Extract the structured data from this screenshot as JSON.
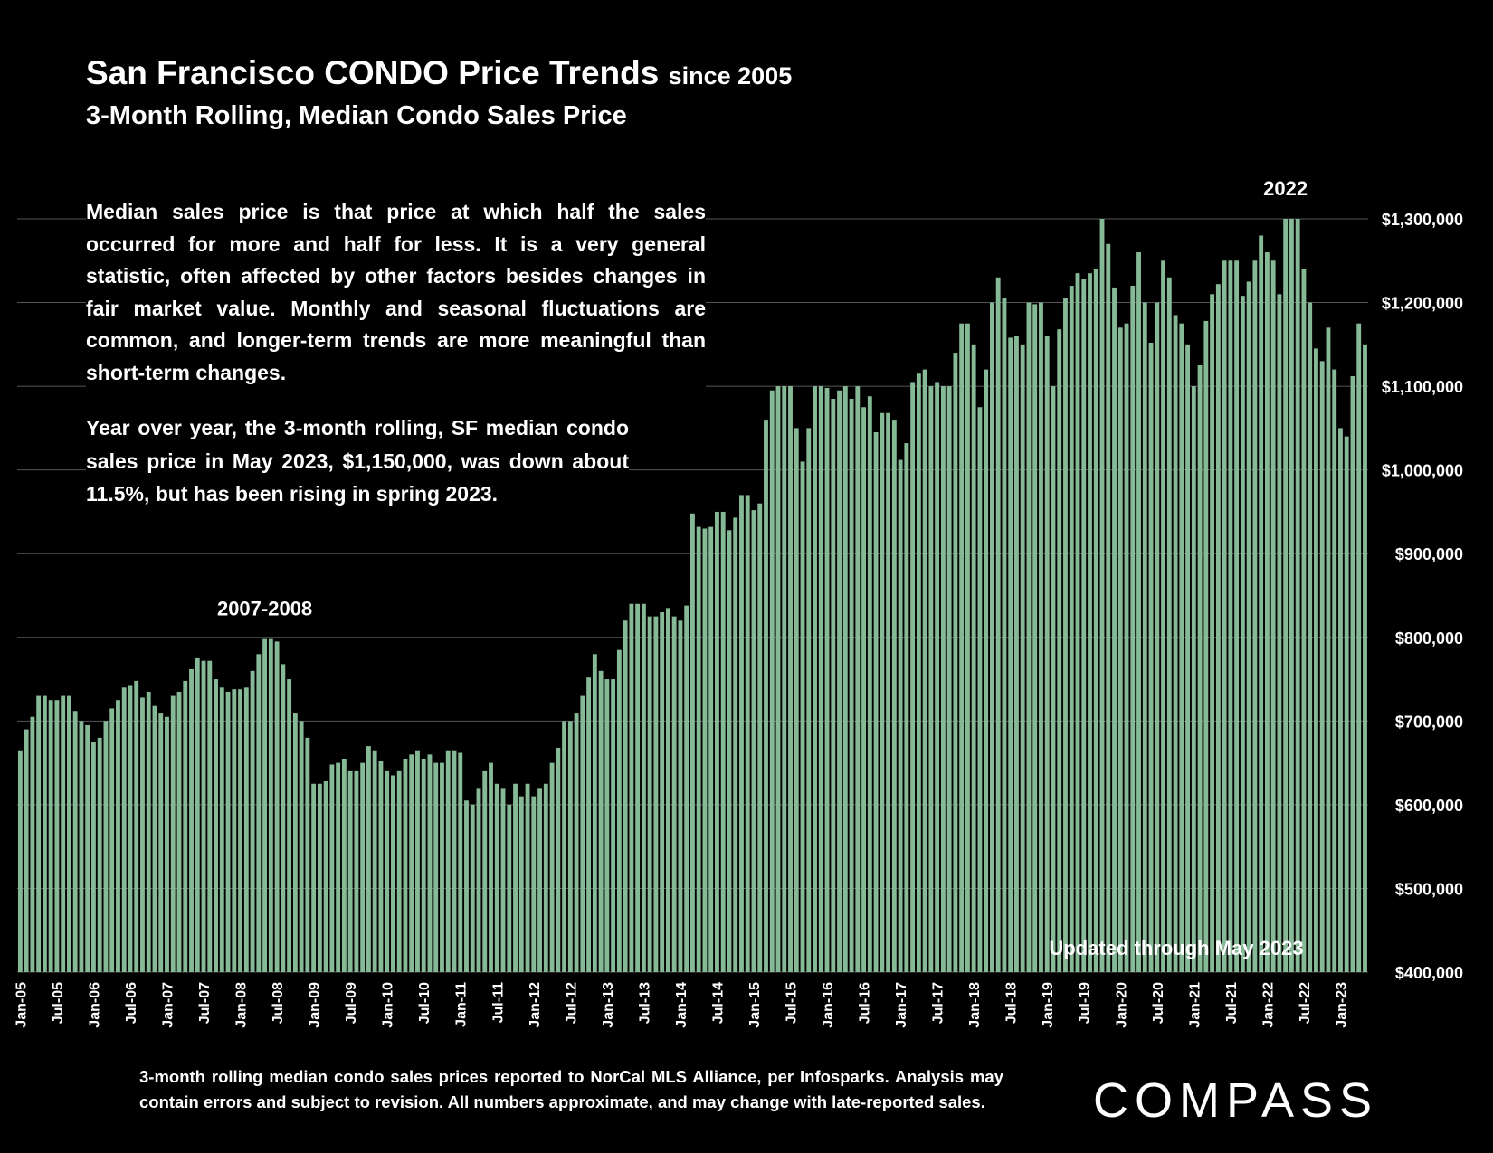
{
  "chart_data": {
    "type": "bar",
    "title": "San Francisco CONDO Price Trends",
    "title_suffix": "since 2005",
    "subtitle": "3-Month Rolling, Median Condo Sales Price",
    "notes": [
      "Median sales price is that price at which half the sales occurred for more and half for less. It is a very general statistic, often affected by other factors besides changes in fair market value. Monthly and seasonal fluctuations are common, and longer-term trends are more meaningful than short-term changes.",
      "Year over year, the 3-month rolling, SF median condo sales price in May 2023, $1,150,000, was down about 11.5%, but has been rising in spring 2023."
    ],
    "annotations": [
      {
        "text": "2007-2008",
        "index": 40
      },
      {
        "text": "2022",
        "index": 207
      }
    ],
    "updated": "Updated through May 2023",
    "footnote": "3-month rolling median condo sales prices reported to NorCal MLS Alliance, per Infosparks. Analysis may contain errors and subject to revision. All numbers approximate, and may change with late-reported sales.",
    "logo": "COMPASS",
    "color": "#86b996",
    "grid": true,
    "categories": [
      "Jan-05",
      null,
      null,
      null,
      null,
      null,
      "Jul-05",
      null,
      null,
      null,
      null,
      null,
      "Jan-06",
      null,
      null,
      null,
      null,
      null,
      "Jul-06",
      null,
      null,
      null,
      null,
      null,
      "Jan-07",
      null,
      null,
      null,
      null,
      null,
      "Jul-07",
      null,
      null,
      null,
      null,
      null,
      "Jan-08",
      null,
      null,
      null,
      null,
      null,
      "Jul-08",
      null,
      null,
      null,
      null,
      null,
      "Jan-09",
      null,
      null,
      null,
      null,
      null,
      "Jul-09",
      null,
      null,
      null,
      null,
      null,
      "Jan-10",
      null,
      null,
      null,
      null,
      null,
      "Jul-10",
      null,
      null,
      null,
      null,
      null,
      "Jan-11",
      null,
      null,
      null,
      null,
      null,
      "Jul-11",
      null,
      null,
      null,
      null,
      null,
      "Jan-12",
      null,
      null,
      null,
      null,
      null,
      "Jul-12",
      null,
      null,
      null,
      null,
      null,
      "Jan-13",
      null,
      null,
      null,
      null,
      null,
      "Jul-13",
      null,
      null,
      null,
      null,
      null,
      "Jan-14",
      null,
      null,
      null,
      null,
      null,
      "Jul-14",
      null,
      null,
      null,
      null,
      null,
      "Jan-15",
      null,
      null,
      null,
      null,
      null,
      "Jul-15",
      null,
      null,
      null,
      null,
      null,
      "Jan-16",
      null,
      null,
      null,
      null,
      null,
      "Jul-16",
      null,
      null,
      null,
      null,
      null,
      "Jan-17",
      null,
      null,
      null,
      null,
      null,
      "Jul-17",
      null,
      null,
      null,
      null,
      null,
      "Jan-18",
      null,
      null,
      null,
      null,
      null,
      "Jul-18",
      null,
      null,
      null,
      null,
      null,
      "Jan-19",
      null,
      null,
      null,
      null,
      null,
      "Jul-19",
      null,
      null,
      null,
      null,
      null,
      "Jan-20",
      null,
      null,
      null,
      null,
      null,
      "Jul-20",
      null,
      null,
      null,
      null,
      null,
      "Jan-21",
      null,
      null,
      null,
      null,
      null,
      "Jul-21",
      null,
      null,
      null,
      null,
      null,
      "Jan-22",
      null,
      null,
      null,
      null,
      null,
      "Jul-22",
      null,
      null,
      null,
      null,
      null,
      "Jan-23",
      null,
      null,
      null,
      null
    ],
    "values": [
      665000,
      690000,
      705000,
      730000,
      730000,
      725000,
      725000,
      730000,
      730000,
      712000,
      700000,
      695000,
      675000,
      680000,
      700000,
      715000,
      725000,
      740000,
      742000,
      748000,
      728000,
      735000,
      718000,
      710000,
      705000,
      730000,
      735000,
      748000,
      762000,
      775000,
      772000,
      772000,
      750000,
      740000,
      735000,
      738000,
      738000,
      740000,
      760000,
      780000,
      798000,
      798000,
      795000,
      768000,
      750000,
      710000,
      700000,
      680000,
      625000,
      625000,
      628000,
      648000,
      650000,
      655000,
      640000,
      640000,
      650000,
      670000,
      665000,
      652000,
      640000,
      635000,
      640000,
      655000,
      660000,
      665000,
      655000,
      660000,
      650000,
      650000,
      665000,
      665000,
      662000,
      605000,
      600000,
      620000,
      640000,
      650000,
      625000,
      620000,
      600000,
      625000,
      610000,
      625000,
      610000,
      620000,
      625000,
      650000,
      668000,
      700000,
      700000,
      710000,
      730000,
      752000,
      780000,
      760000,
      750000,
      750000,
      785000,
      820000,
      840000,
      840000,
      840000,
      825000,
      825000,
      830000,
      835000,
      825000,
      820000,
      838000,
      948000,
      932000,
      930000,
      932000,
      950000,
      950000,
      928000,
      943000,
      970000,
      970000,
      952000,
      960000,
      1060000,
      1095000,
      1100000,
      1100000,
      1100000,
      1050000,
      1010000,
      1050000,
      1100000,
      1100000,
      1098000,
      1085000,
      1095000,
      1100000,
      1085000,
      1100000,
      1075000,
      1088000,
      1045000,
      1068000,
      1068000,
      1060000,
      1012000,
      1032000,
      1105000,
      1115000,
      1120000,
      1100000,
      1105000,
      1100000,
      1100000,
      1140000,
      1175000,
      1175000,
      1150000,
      1075000,
      1120000,
      1200000,
      1230000,
      1205000,
      1158000,
      1160000,
      1150000,
      1200000,
      1198000,
      1200000,
      1160000,
      1100000,
      1168000,
      1205000,
      1220000,
      1235000,
      1228000,
      1235000,
      1240000,
      1300000,
      1270000,
      1218000,
      1170000,
      1175000,
      1220000,
      1260000,
      1200000,
      1152000,
      1200000,
      1250000,
      1230000,
      1185000,
      1175000,
      1150000,
      1100000,
      1125000,
      1178000,
      1210000,
      1222000,
      1250000,
      1250000,
      1250000,
      1208000,
      1225000,
      1250000,
      1280000,
      1260000,
      1250000,
      1210000,
      1300000,
      1300000,
      1300000,
      1240000,
      1200000,
      1145000,
      1130000,
      1170000,
      1120000,
      1050000,
      1040000,
      1112000,
      1175000,
      1150000
    ],
    "ylim": [
      400000,
      1300000
    ],
    "yticks": [
      {
        "value": 400000,
        "label": "$400,000"
      },
      {
        "value": 500000,
        "label": "$500,000"
      },
      {
        "value": 600000,
        "label": "$600,000"
      },
      {
        "value": 700000,
        "label": "$700,000"
      },
      {
        "value": 800000,
        "label": "$800,000"
      },
      {
        "value": 900000,
        "label": "$900,000"
      },
      {
        "value": 1000000,
        "label": "$1,000,000"
      },
      {
        "value": 1100000,
        "label": "$1,100,000"
      },
      {
        "value": 1200000,
        "label": "$1,200,000"
      },
      {
        "value": 1300000,
        "label": "$1,300,000"
      }
    ]
  }
}
